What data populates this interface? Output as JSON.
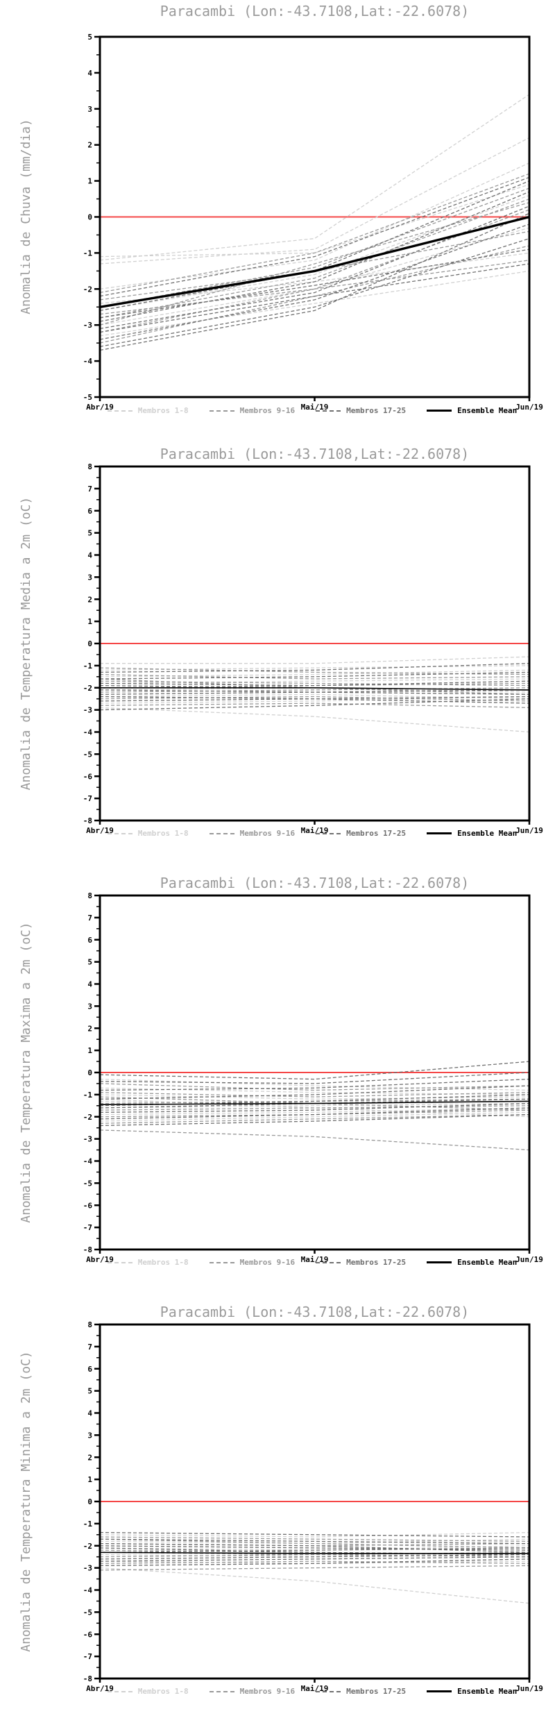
{
  "colors": {
    "background": "#ffffff",
    "axis": "#000000",
    "zero_line": "#f54646",
    "title_text": "#9a9a9a",
    "tick_text": "#000000",
    "member_groups": [
      "#d0d0d0",
      "#989898",
      "#6f6f6f"
    ],
    "ensemble_mean": "#000000"
  },
  "legend": {
    "items": [
      {
        "label": "Membros 1-8",
        "color": "#d0d0d0",
        "line": "dashed"
      },
      {
        "label": "Membros 9-16",
        "color": "#989898",
        "line": "dashed"
      },
      {
        "label": "Membros 17-25",
        "color": "#6f6f6f",
        "line": "dashed"
      },
      {
        "label": "Ensemble Mean",
        "color": "#000000",
        "line": "solid"
      }
    ]
  },
  "chart_data": [
    {
      "type": "line",
      "title": "Paracambi (Lon:-43.7108,Lat:-22.6078)",
      "ylabel": "Anomalia de Chuva (mm/dia)",
      "x_labels": [
        "Abr/19",
        "Mai/19",
        "Jun/19"
      ],
      "ylim": [
        -5,
        5
      ],
      "ytick_step": 1,
      "yminor_step": 0.5,
      "refline_y": 0,
      "grid": false,
      "members": {
        "g1": [
          [
            -1.2,
            -0.6,
            3.4
          ],
          [
            -1.3,
            -0.9,
            2.2
          ],
          [
            -1.1,
            -1.0,
            0.9
          ],
          [
            -2.0,
            -1.2,
            1.5
          ],
          [
            -2.6,
            -1.6,
            0.6
          ],
          [
            -3.0,
            -2.0,
            -0.3
          ],
          [
            -2.4,
            -1.8,
            -1.0
          ],
          [
            -3.3,
            -2.4,
            -1.5
          ]
        ],
        "g2": [
          [
            -2.1,
            -1.0,
            1.2
          ],
          [
            -2.5,
            -1.4,
            0.8
          ],
          [
            -2.8,
            -1.7,
            0.5
          ],
          [
            -3.2,
            -2.0,
            0.2
          ],
          [
            -2.3,
            -1.5,
            -0.4
          ],
          [
            -3.5,
            -2.2,
            -0.8
          ],
          [
            -2.7,
            -2.0,
            -1.2
          ],
          [
            -3.0,
            -1.3,
            0.4
          ]
        ],
        "g3": [
          [
            -2.2,
            -1.1,
            1.1
          ],
          [
            -2.6,
            -1.5,
            1.0
          ],
          [
            -2.9,
            -1.8,
            0.7
          ],
          [
            -3.1,
            -2.1,
            0.3
          ],
          [
            -3.4,
            -2.3,
            -0.2
          ],
          [
            -3.6,
            -2.5,
            -0.6
          ],
          [
            -2.8,
            -1.9,
            -0.9
          ],
          [
            -3.2,
            -2.2,
            -1.3
          ],
          [
            -3.7,
            -2.6,
            0.1
          ]
        ]
      },
      "mean": [
        -2.5,
        -1.5,
        0.0
      ]
    },
    {
      "type": "line",
      "title": "Paracambi (Lon:-43.7108,Lat:-22.6078)",
      "ylabel": "Anomalia de Temperatura Media a 2m (oC)",
      "x_labels": [
        "Abr/19",
        "Mai/19",
        "Jun/19"
      ],
      "ylim": [
        -8,
        8
      ],
      "ytick_step": 1,
      "yminor_step": 0.5,
      "refline_y": 0,
      "grid": false,
      "members": {
        "g1": [
          [
            -0.9,
            -0.9,
            -0.6
          ],
          [
            -1.2,
            -1.1,
            -1.0
          ],
          [
            -1.5,
            -1.4,
            -1.2
          ],
          [
            -1.8,
            -1.7,
            -1.6
          ],
          [
            -2.1,
            -2.0,
            -2.2
          ],
          [
            -2.4,
            -2.3,
            -2.5
          ],
          [
            -2.7,
            -2.6,
            -2.4
          ],
          [
            -2.9,
            -3.3,
            -4.0
          ]
        ],
        "g2": [
          [
            -1.1,
            -1.3,
            -1.4
          ],
          [
            -1.4,
            -1.6,
            -1.5
          ],
          [
            -1.7,
            -1.8,
            -1.9
          ],
          [
            -2.0,
            -1.9,
            -1.8
          ],
          [
            -2.2,
            -2.1,
            -2.0
          ],
          [
            -2.5,
            -2.4,
            -2.6
          ],
          [
            -1.6,
            -2.0,
            -2.3
          ],
          [
            -2.8,
            -2.7,
            -2.9
          ]
        ],
        "g3": [
          [
            -1.3,
            -1.2,
            -0.9
          ],
          [
            -1.6,
            -1.5,
            -1.3
          ],
          [
            -1.9,
            -2.0,
            -2.1
          ],
          [
            -2.1,
            -2.2,
            -2.3
          ],
          [
            -2.3,
            -2.2,
            -2.1
          ],
          [
            -2.6,
            -2.5,
            -2.4
          ],
          [
            -2.4,
            -2.5,
            -2.7
          ],
          [
            -3.0,
            -2.8,
            -2.5
          ],
          [
            -1.8,
            -1.9,
            -1.7
          ]
        ]
      },
      "mean": [
        -2.0,
        -2.0,
        -2.1
      ]
    },
    {
      "type": "line",
      "title": "Paracambi (Lon:-43.7108,Lat:-22.6078)",
      "ylabel": "Anomalia de Temperatura Maxima a 2m (oC)",
      "x_labels": [
        "Abr/19",
        "Mai/19",
        "Jun/19"
      ],
      "ylim": [
        -8,
        8
      ],
      "ytick_step": 1,
      "yminor_step": 0.5,
      "refline_y": 0,
      "grid": false,
      "members": {
        "g1": [
          [
            -0.3,
            -0.6,
            -0.8
          ],
          [
            -0.7,
            -0.9,
            -1.0
          ],
          [
            -1.0,
            -1.2,
            -1.1
          ],
          [
            -1.3,
            -1.4,
            -1.3
          ],
          [
            -1.6,
            -1.5,
            -1.4
          ],
          [
            -1.9,
            -1.8,
            -1.6
          ],
          [
            -2.2,
            -2.0,
            -1.8
          ],
          [
            -1.2,
            -1.6,
            -2.0
          ]
        ],
        "g2": [
          [
            -0.5,
            -0.8,
            -0.6
          ],
          [
            -0.9,
            -1.1,
            -0.9
          ],
          [
            -1.4,
            -1.3,
            -1.2
          ],
          [
            -1.7,
            -1.6,
            -1.5
          ],
          [
            -2.0,
            -1.9,
            -1.7
          ],
          [
            -2.3,
            -2.1,
            -1.9
          ],
          [
            -1.1,
            -1.4,
            -1.7
          ],
          [
            -2.6,
            -2.9,
            -3.5
          ]
        ],
        "g3": [
          [
            -0.1,
            -0.3,
            0.5
          ],
          [
            -0.4,
            -0.5,
            0.0
          ],
          [
            -0.8,
            -0.7,
            -0.3
          ],
          [
            -1.2,
            -1.0,
            -0.6
          ],
          [
            -1.5,
            -1.3,
            -1.0
          ],
          [
            -1.8,
            -1.7,
            -1.4
          ],
          [
            -2.1,
            -1.9,
            -1.6
          ],
          [
            -2.4,
            -2.2,
            -1.9
          ],
          [
            -1.6,
            -1.4,
            -1.2
          ]
        ]
      },
      "mean": [
        -1.45,
        -1.4,
        -1.3
      ]
    },
    {
      "type": "line",
      "title": "Paracambi (Lon:-43.7108,Lat:-22.6078)",
      "ylabel": "Anomalia de Temperatura Minima a 2m (oC)",
      "x_labels": [
        "Abr/19",
        "Mai/19",
        "Jun/19"
      ],
      "ylim": [
        -8,
        8
      ],
      "ytick_step": 1,
      "yminor_step": 0.5,
      "refline_y": 0,
      "grid": false,
      "members": {
        "g1": [
          [
            -1.5,
            -1.6,
            -1.4
          ],
          [
            -1.8,
            -1.9,
            -1.7
          ],
          [
            -2.1,
            -2.2,
            -2.0
          ],
          [
            -2.4,
            -2.5,
            -2.3
          ],
          [
            -2.7,
            -2.8,
            -2.6
          ],
          [
            -3.0,
            -3.6,
            -4.6
          ],
          [
            -2.0,
            -2.1,
            -2.2
          ],
          [
            -2.9,
            -2.8,
            -2.7
          ]
        ],
        "g2": [
          [
            -1.6,
            -1.7,
            -1.8
          ],
          [
            -1.9,
            -2.0,
            -1.9
          ],
          [
            -2.2,
            -2.3,
            -2.4
          ],
          [
            -2.5,
            -2.4,
            -2.3
          ],
          [
            -2.8,
            -2.7,
            -2.8
          ],
          [
            -1.7,
            -1.9,
            -2.1
          ],
          [
            -2.3,
            -2.4,
            -2.5
          ],
          [
            -3.1,
            -3.0,
            -2.9
          ]
        ],
        "g3": [
          [
            -1.4,
            -1.5,
            -1.6
          ],
          [
            -1.7,
            -1.8,
            -1.9
          ],
          [
            -2.0,
            -2.1,
            -2.2
          ],
          [
            -2.3,
            -2.2,
            -2.1
          ],
          [
            -2.6,
            -2.5,
            -2.4
          ],
          [
            -2.9,
            -2.8,
            -2.6
          ],
          [
            -2.1,
            -2.3,
            -2.4
          ],
          [
            -2.7,
            -2.6,
            -2.5
          ],
          [
            -1.9,
            -2.0,
            -2.3
          ]
        ]
      },
      "mean": [
        -2.3,
        -2.35,
        -2.35
      ]
    }
  ]
}
